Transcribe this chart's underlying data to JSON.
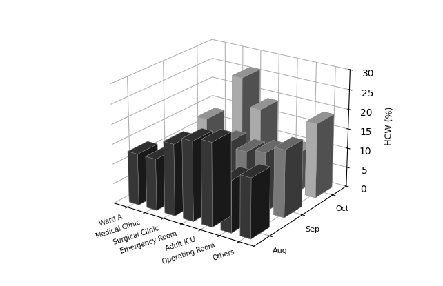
{
  "categories": [
    "Ward A",
    "Medical Clinic",
    "Surgical Clinic",
    "Emergency Room",
    "Adult ICU",
    "Operating Room",
    "Others"
  ],
  "series": [
    "Aug",
    "Sep",
    "Oct"
  ],
  "values": {
    "Aug": [
      13,
      13,
      18,
      20,
      21,
      13,
      15
    ],
    "Sep": [
      11,
      6,
      10,
      15,
      14,
      15,
      17
    ],
    "Oct": [
      13,
      6,
      26,
      19,
      5,
      10,
      19
    ]
  },
  "colors": {
    "Aug": "#3d3d3d",
    "Sep": "#888888",
    "Oct": "#c0c0c0"
  },
  "zlabel": "HCW (%)",
  "zlim": [
    0,
    30
  ],
  "zticks": [
    0,
    5,
    10,
    15,
    20,
    25,
    30
  ],
  "bar_width": 0.55,
  "bar_depth": 0.55,
  "elev": 22,
  "azim": -55
}
